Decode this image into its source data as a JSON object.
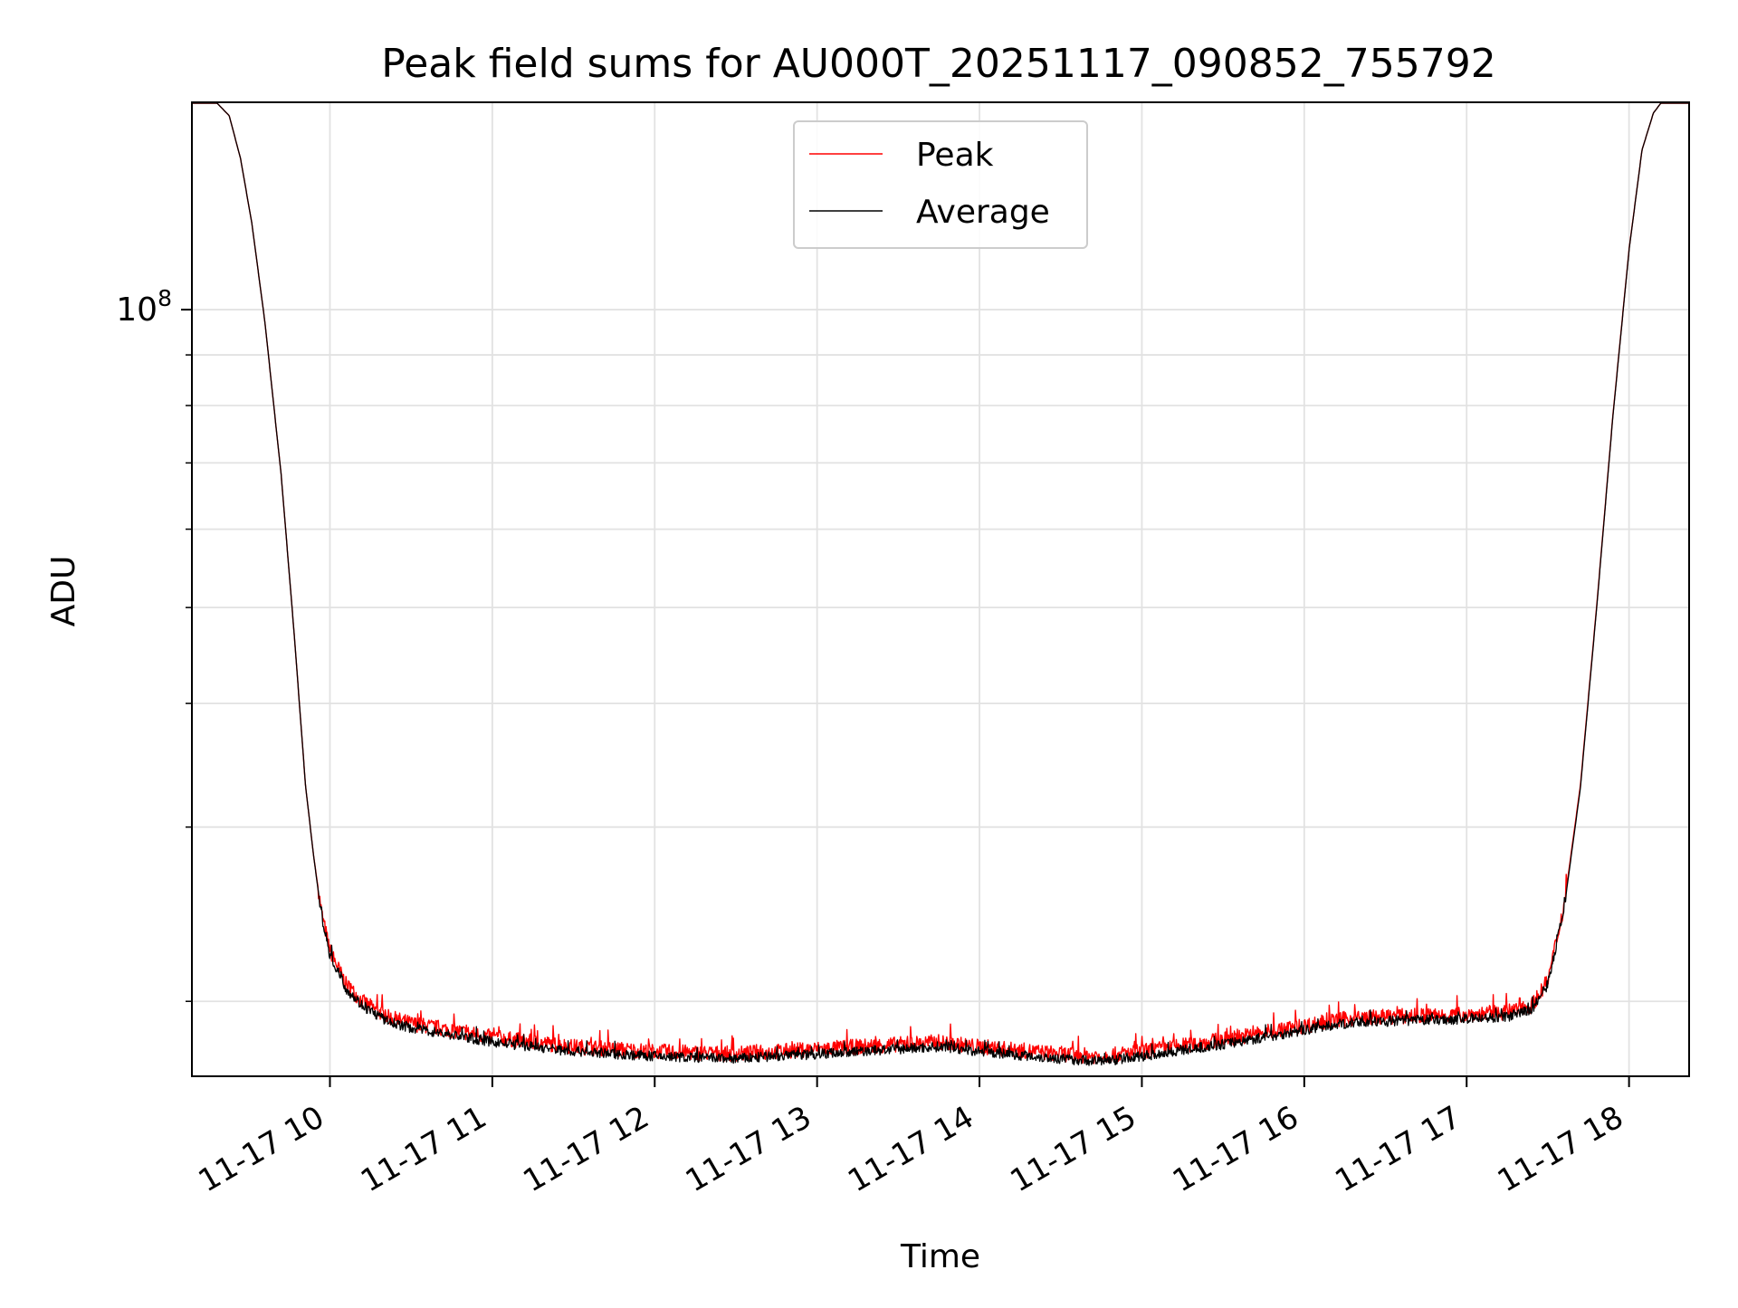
{
  "chart_data": {
    "type": "line",
    "title": "Peak field sums for AU000T_20251117_090852_755792",
    "xlabel": "Time",
    "ylabel": "ADU",
    "yscale": "log",
    "xlim_hours": [
      9.15,
      18.37
    ],
    "ylim": [
      16800000,
      162000000
    ],
    "grid": true,
    "legend": {
      "position": "upper center",
      "entries": [
        "Peak",
        "Average"
      ]
    },
    "x_tick_labels": [
      {
        "hour": 10,
        "label": "11-17 10"
      },
      {
        "hour": 11,
        "label": "11-17 11"
      },
      {
        "hour": 12,
        "label": "11-17 12"
      },
      {
        "hour": 13,
        "label": "11-17 13"
      },
      {
        "hour": 14,
        "label": "11-17 14"
      },
      {
        "hour": 15,
        "label": "11-17 15"
      },
      {
        "hour": 16,
        "label": "11-17 16"
      },
      {
        "hour": 17,
        "label": "11-17 17"
      },
      {
        "hour": 18,
        "label": "11-17 18"
      }
    ],
    "y_major_ticks": [
      {
        "value": 100000000,
        "base": "10",
        "exp": "8"
      }
    ],
    "y_minor_ticks": [
      20000000,
      30000000,
      40000000,
      50000000,
      60000000,
      70000000,
      80000000,
      90000000,
      200000000
    ],
    "series": [
      {
        "name": "Peak",
        "color": "#ff0000",
        "x_hours": [
          9.15,
          9.3,
          9.38,
          9.45,
          9.52,
          9.6,
          9.7,
          9.78,
          9.85,
          9.9,
          9.95,
          10.0,
          10.1,
          10.2,
          10.35,
          10.5,
          10.75,
          11.0,
          11.5,
          12.0,
          12.5,
          13.0,
          13.5,
          13.75,
          14.0,
          14.5,
          14.75,
          15.0,
          15.5,
          16.0,
          16.25,
          16.5,
          17.0,
          17.25,
          17.4,
          17.5,
          17.6,
          17.7,
          17.8,
          17.9,
          18.0,
          18.08,
          18.15,
          18.2,
          18.37
        ],
        "y": [
          162000000,
          162000000,
          157000000,
          142000000,
          122000000,
          97000000,
          68000000,
          47000000,
          33000000,
          28000000,
          24500000,
          22500000,
          20800000,
          20000000,
          19300000,
          19000000,
          18700000,
          18400000,
          18000000,
          17800000,
          17700000,
          17900000,
          18100000,
          18200000,
          18000000,
          17700000,
          17600000,
          17800000,
          18300000,
          18900000,
          19200000,
          19300000,
          19400000,
          19500000,
          19800000,
          21000000,
          25000000,
          33000000,
          50000000,
          78000000,
          115000000,
          145000000,
          158000000,
          162000000,
          162000000
        ]
      },
      {
        "name": "Average",
        "color": "#000000",
        "x_hours": [
          9.15,
          9.3,
          9.38,
          9.45,
          9.52,
          9.6,
          9.7,
          9.78,
          9.85,
          9.9,
          9.95,
          10.0,
          10.1,
          10.2,
          10.35,
          10.5,
          10.75,
          11.0,
          11.5,
          12.0,
          12.5,
          13.0,
          13.5,
          13.75,
          14.0,
          14.5,
          14.75,
          15.0,
          15.5,
          16.0,
          16.25,
          16.5,
          17.0,
          17.25,
          17.4,
          17.5,
          17.6,
          17.7,
          17.8,
          17.9,
          18.0,
          18.08,
          18.15,
          18.2,
          18.37
        ],
        "y": [
          162000000,
          162000000,
          157000000,
          142000000,
          122000000,
          97000000,
          68000000,
          47000000,
          33000000,
          28000000,
          24300000,
          22300000,
          20600000,
          19800000,
          19100000,
          18800000,
          18500000,
          18200000,
          17800000,
          17600000,
          17500000,
          17700000,
          17900000,
          18000000,
          17800000,
          17500000,
          17400000,
          17600000,
          18100000,
          18700000,
          19000000,
          19100000,
          19200000,
          19300000,
          19600000,
          20800000,
          24800000,
          32800000,
          49800000,
          77800000,
          114800000,
          145000000,
          158000000,
          162000000,
          162000000
        ]
      }
    ]
  }
}
